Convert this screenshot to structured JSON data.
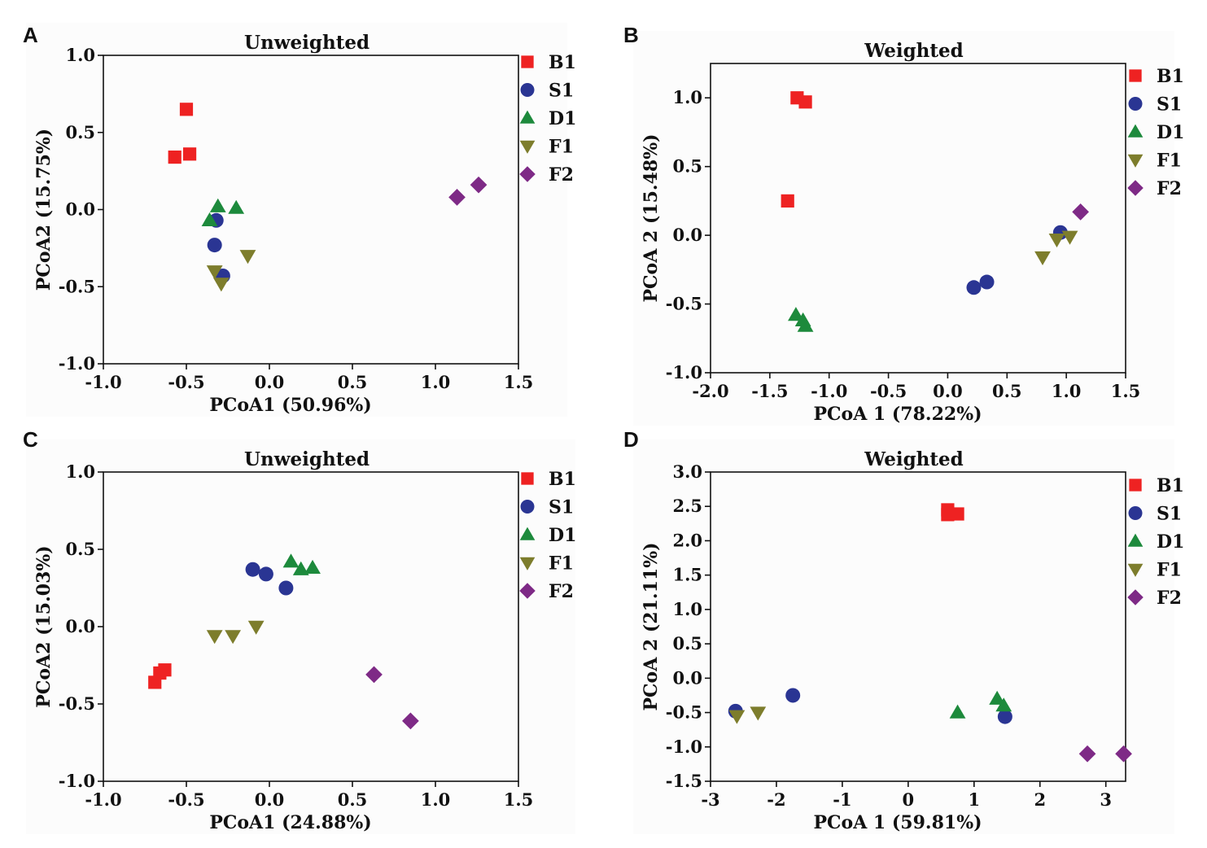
{
  "colors": {
    "B1": "#ee2222",
    "S1": "#2a3593",
    "D1": "#1d8a3c",
    "F1": "#7d7d2c",
    "F2": "#7e2a86"
  },
  "legend": [
    {
      "label": "B1",
      "marker": "square"
    },
    {
      "label": "S1",
      "marker": "circle"
    },
    {
      "label": "D1",
      "marker": "triangle-up"
    },
    {
      "label": "F1",
      "marker": "triangle-down"
    },
    {
      "label": "F2",
      "marker": "diamond"
    }
  ],
  "chart_data": [
    {
      "panel": "A",
      "type": "scatter",
      "title": "Unweighted",
      "xlabel": "PCoA1 (50.96%)",
      "ylabel": "PCoA2 (15.75%)",
      "xlim": [
        -1.0,
        1.5
      ],
      "ylim": [
        -1.0,
        1.0
      ],
      "xticks": [
        -1.0,
        -0.5,
        0.0,
        0.5,
        1.0,
        1.5
      ],
      "yticks": [
        -1.0,
        -0.5,
        0.0,
        0.5,
        1.0
      ],
      "xtick_labels": [
        "-1.0",
        "-0.5",
        "0.0",
        "0.5",
        "1.0",
        "1.5"
      ],
      "ytick_labels": [
        "-1.0",
        "-0.5",
        "0.0",
        "0.5",
        "1.0"
      ],
      "legend_position": "right",
      "series": [
        {
          "name": "B1",
          "points": [
            [
              -0.5,
              0.65
            ],
            [
              -0.48,
              0.36
            ],
            [
              -0.57,
              0.34
            ]
          ]
        },
        {
          "name": "S1",
          "points": [
            [
              -0.32,
              -0.07
            ],
            [
              -0.33,
              -0.23
            ],
            [
              -0.28,
              -0.43
            ]
          ]
        },
        {
          "name": "D1",
          "points": [
            [
              -0.31,
              0.02
            ],
            [
              -0.36,
              -0.07
            ],
            [
              -0.2,
              0.01
            ]
          ]
        },
        {
          "name": "F1",
          "points": [
            [
              -0.13,
              -0.3
            ],
            [
              -0.33,
              -0.4
            ],
            [
              -0.29,
              -0.48
            ]
          ]
        },
        {
          "name": "F2",
          "points": [
            [
              1.13,
              0.08
            ],
            [
              1.26,
              0.16
            ]
          ]
        }
      ]
    },
    {
      "panel": "B",
      "type": "scatter",
      "title": "Weighted",
      "xlabel": "PCoA 1 (78.22%)",
      "ylabel": "PCoA 2 (15.48%)",
      "xlim": [
        -2.0,
        1.5
      ],
      "ylim": [
        -1.0,
        1.25
      ],
      "xticks": [
        -2.0,
        -1.5,
        -1.0,
        -0.5,
        0.0,
        0.5,
        1.0,
        1.5
      ],
      "yticks": [
        -1.0,
        -0.5,
        0.0,
        0.5,
        1.0
      ],
      "xtick_labels": [
        "-2.0",
        "-1.5",
        "-1.0",
        "-0.5",
        "0.0",
        "0.5",
        "1.0",
        "1.5"
      ],
      "ytick_labels": [
        "-1.0",
        "-0.5",
        "0.0",
        "0.5",
        "1.0"
      ],
      "legend_position": "right",
      "series": [
        {
          "name": "B1",
          "points": [
            [
              -1.27,
              1.0
            ],
            [
              -1.2,
              0.97
            ],
            [
              -1.35,
              0.25
            ]
          ]
        },
        {
          "name": "S1",
          "points": [
            [
              0.95,
              0.02
            ],
            [
              0.22,
              -0.38
            ],
            [
              0.33,
              -0.34
            ]
          ]
        },
        {
          "name": "D1",
          "points": [
            [
              -1.28,
              -0.58
            ],
            [
              -1.22,
              -0.62
            ],
            [
              -1.2,
              -0.66
            ]
          ]
        },
        {
          "name": "F1",
          "points": [
            [
              0.8,
              -0.16
            ],
            [
              0.92,
              -0.03
            ],
            [
              1.03,
              -0.01
            ]
          ]
        },
        {
          "name": "F2",
          "points": [
            [
              1.12,
              0.17
            ]
          ]
        }
      ]
    },
    {
      "panel": "C",
      "type": "scatter",
      "title": "Unweighted",
      "xlabel": "PCoA1 (24.88%)",
      "ylabel": "PCoA2 (15.03%)",
      "xlim": [
        -1.0,
        1.5
      ],
      "ylim": [
        -1.0,
        1.0
      ],
      "xticks": [
        -1.0,
        -0.5,
        0.0,
        0.5,
        1.0,
        1.5
      ],
      "yticks": [
        -1.0,
        -0.5,
        0.0,
        0.5,
        1.0
      ],
      "xtick_labels": [
        "-1.0",
        "-0.5",
        "0.0",
        "0.5",
        "1.0",
        "1.5"
      ],
      "ytick_labels": [
        "-1.0",
        "-0.5",
        "0.0",
        "0.5",
        "1.0"
      ],
      "legend_position": "right",
      "series": [
        {
          "name": "B1",
          "points": [
            [
              -0.63,
              -0.28
            ],
            [
              -0.66,
              -0.3
            ],
            [
              -0.69,
              -0.36
            ]
          ]
        },
        {
          "name": "S1",
          "points": [
            [
              -0.1,
              0.37
            ],
            [
              -0.02,
              0.34
            ],
            [
              0.1,
              0.25
            ]
          ]
        },
        {
          "name": "D1",
          "points": [
            [
              0.13,
              0.42
            ],
            [
              0.19,
              0.37
            ],
            [
              0.26,
              0.38
            ]
          ]
        },
        {
          "name": "F1",
          "points": [
            [
              -0.33,
              -0.06
            ],
            [
              -0.22,
              -0.06
            ],
            [
              -0.08,
              0.0
            ]
          ]
        },
        {
          "name": "F2",
          "points": [
            [
              0.63,
              -0.31
            ],
            [
              0.85,
              -0.61
            ]
          ]
        }
      ]
    },
    {
      "panel": "D",
      "type": "scatter",
      "title": "Weighted",
      "xlabel": "PCoA 1 (59.81%)",
      "ylabel": "PCoA 2 (21.11%)",
      "xlim": [
        -3.0,
        3.3
      ],
      "ylim": [
        -1.5,
        3.0
      ],
      "xticks": [
        -3,
        -2,
        -1,
        0,
        1,
        2,
        3
      ],
      "yticks": [
        -1.5,
        -1.0,
        -0.5,
        0.0,
        0.5,
        1.0,
        1.5,
        2.0,
        2.5,
        3.0
      ],
      "xtick_labels": [
        "-3",
        "-2",
        "-1",
        "0",
        "1",
        "2",
        "3"
      ],
      "ytick_labels": [
        "-1.5",
        "-1.0",
        "-0.5",
        "0.0",
        "0.5",
        "1.0",
        "1.5",
        "2.0",
        "2.5",
        "3.0"
      ],
      "legend_position": "right",
      "series": [
        {
          "name": "B1",
          "points": [
            [
              0.6,
              2.45
            ],
            [
              0.6,
              2.38
            ],
            [
              0.75,
              2.39
            ]
          ]
        },
        {
          "name": "S1",
          "points": [
            [
              -2.62,
              -0.48
            ],
            [
              -1.75,
              -0.25
            ],
            [
              1.47,
              -0.56
            ]
          ]
        },
        {
          "name": "D1",
          "points": [
            [
              0.75,
              -0.5
            ],
            [
              1.35,
              -0.3
            ],
            [
              1.45,
              -0.4
            ]
          ]
        },
        {
          "name": "F1",
          "points": [
            [
              -2.6,
              -0.55
            ],
            [
              -2.28,
              -0.5
            ]
          ]
        },
        {
          "name": "F2",
          "points": [
            [
              2.72,
              -1.1
            ],
            [
              3.27,
              -1.1
            ]
          ]
        }
      ]
    }
  ]
}
